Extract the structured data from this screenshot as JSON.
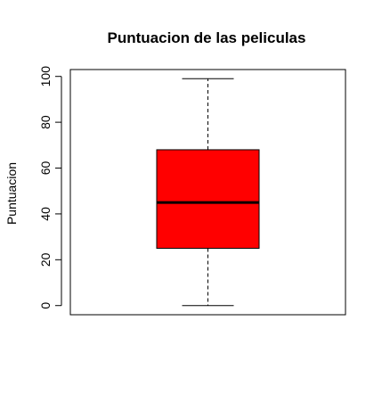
{
  "chart_data": {
    "type": "box",
    "title": "Puntuacion de las peliculas",
    "xlabel": "",
    "ylabel": "Puntuacion",
    "ylim": [
      -4,
      103
    ],
    "yticks": [
      0,
      20,
      40,
      60,
      80,
      100
    ],
    "grid": false,
    "legend": "none",
    "box": {
      "min": 0,
      "q1": 25,
      "median": 45,
      "q3": 68,
      "max": 99,
      "color": "#ff0000"
    }
  }
}
